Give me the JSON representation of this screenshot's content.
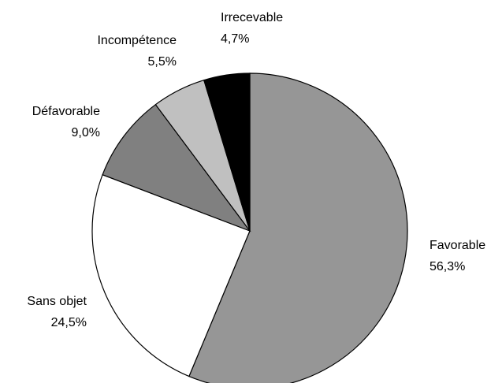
{
  "chart_data": {
    "type": "pie",
    "title": "",
    "start_angle_deg": 0,
    "direction": "clockwise",
    "slices": [
      {
        "label": "Favorable",
        "value_text": "56,3%",
        "value": 56.3,
        "color": "#969696"
      },
      {
        "label": "Sans objet",
        "value_text": "24,5%",
        "value": 24.5,
        "color": "#ffffff"
      },
      {
        "label": "Défavorable",
        "value_text": "9,0%",
        "value": 9.0,
        "color": "#808080"
      },
      {
        "label": "Incompétence",
        "value_text": "5,5%",
        "value": 5.5,
        "color": "#c0c0c0"
      },
      {
        "label": "Irrecevable",
        "value_text": "4,7%",
        "value": 4.7,
        "color": "#000000"
      }
    ]
  }
}
